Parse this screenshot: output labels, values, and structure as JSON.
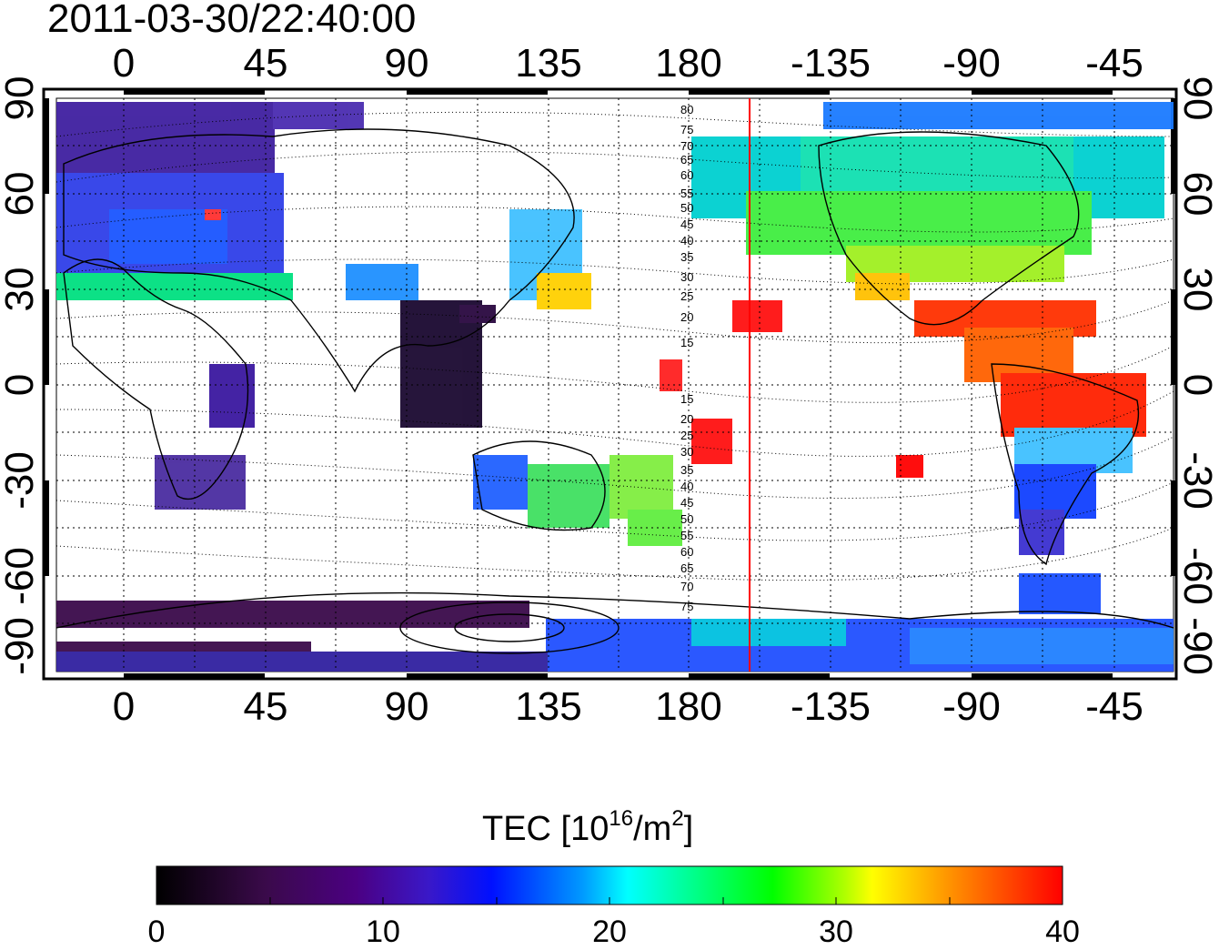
{
  "title": "2011-03-30/22:40:00",
  "map": {
    "lon_ticks": [
      "0",
      "45",
      "90",
      "135",
      "180",
      "-135",
      "-90",
      "-45"
    ],
    "lat_ticks": [
      "90",
      "60",
      "30",
      "0",
      "-30",
      "-60",
      "-90"
    ],
    "contour_labels": [
      "80",
      "75",
      "70",
      "65",
      "60",
      "55",
      "50",
      "45",
      "40",
      "35",
      "30",
      "25",
      "20",
      "15",
      "15",
      "20",
      "25",
      "30",
      "35",
      "40",
      "45",
      "50",
      "55",
      "60",
      "65",
      "70",
      "75"
    ],
    "marker_line_lon": -160,
    "marker_line_color": "#ff0000",
    "colors": {
      "land": "#000000",
      "grid": "#000000"
    }
  },
  "colorbar": {
    "title_prefix": "TEC  [10",
    "title_sup": "16",
    "title_mid": "/m",
    "title_sup2": "2",
    "title_suffix": "]",
    "min": 0,
    "max": 40,
    "tick_labels": [
      "0",
      "10",
      "20",
      "30",
      "40"
    ],
    "colormap": [
      "#000000",
      "#4b0082",
      "#0000ff",
      "#00ffff",
      "#00ff00",
      "#ffff00",
      "#ff7f00",
      "#ff0000"
    ]
  }
}
